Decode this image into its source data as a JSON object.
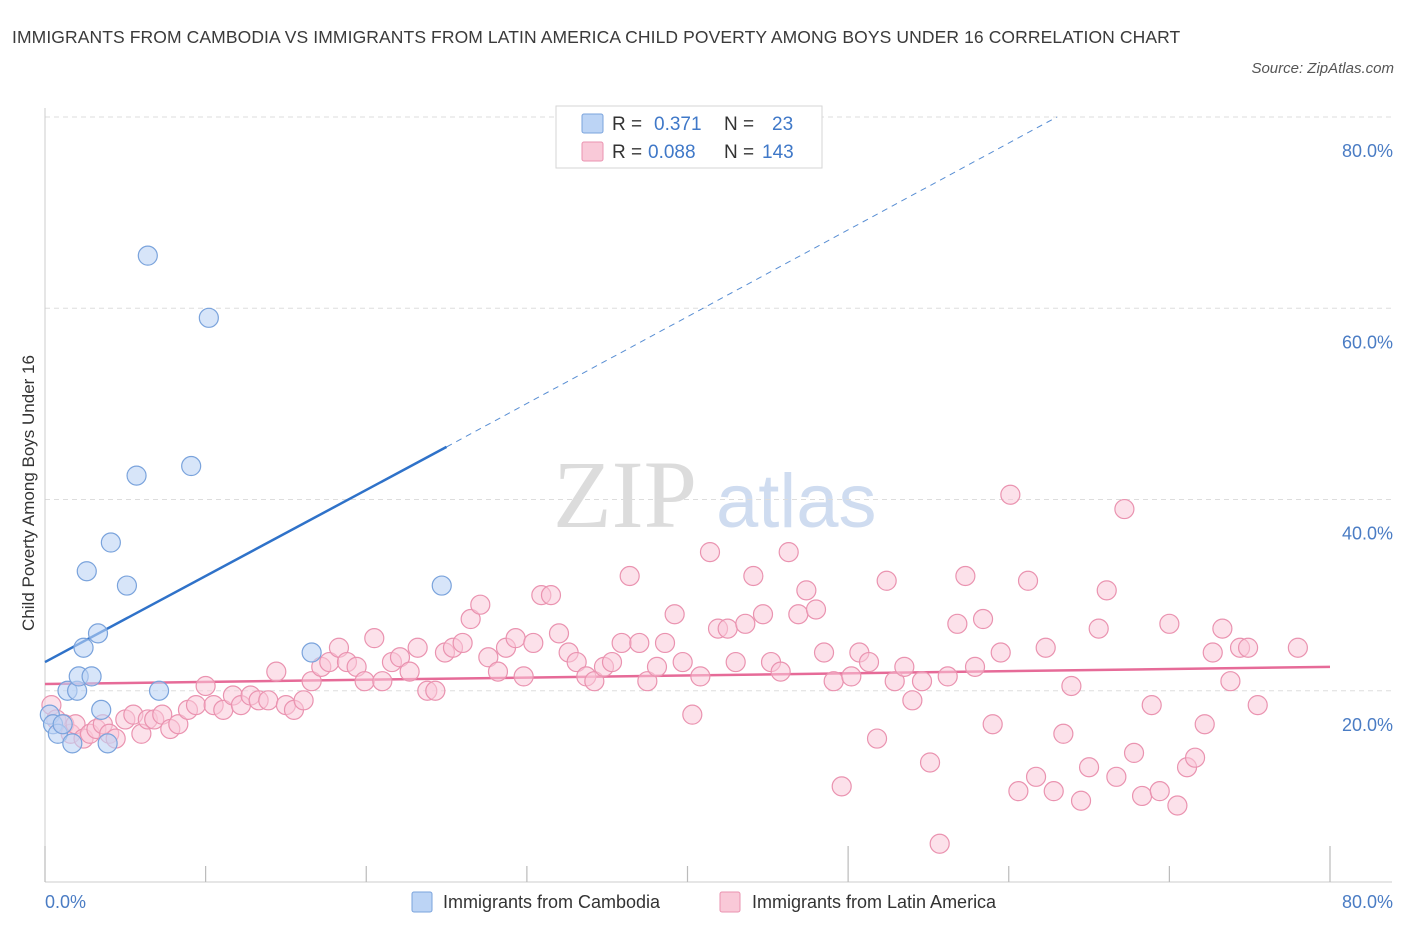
{
  "title": "IMMIGRANTS FROM CAMBODIA VS IMMIGRANTS FROM LATIN AMERICA CHILD POVERTY AMONG BOYS UNDER 16 CORRELATION CHART",
  "source": "Source: ZipAtlas.com",
  "watermark": {
    "part1": "ZIP",
    "part2": "atlas"
  },
  "legend": {
    "rows": [
      {
        "r_label": "R =",
        "r_value": "0.371",
        "n_label": "N =",
        "n_value": "23"
      },
      {
        "r_label": "R =",
        "r_value": "0.088",
        "n_label": "N =",
        "n_value": "143"
      }
    ]
  },
  "bottom_legend": [
    "Immigrants from Cambodia",
    "Immigrants from Latin America"
  ],
  "colors": {
    "cambodia_fill": "#bcd4f5",
    "cambodia_stroke": "#7aa3dc",
    "cambodia_line": "#2f72c9",
    "latin_fill": "#f9c9d8",
    "latin_stroke": "#ea93b0",
    "latin_line": "#e66b98",
    "tick_text": "#4a7cc4",
    "grid": "#dddddd"
  },
  "chart_data": {
    "type": "scatter",
    "title": "IMMIGRANTS FROM CAMBODIA VS IMMIGRANTS FROM LATIN AMERICA CHILD POVERTY AMONG BOYS UNDER 16 CORRELATION CHART",
    "xlabel": "",
    "ylabel": "Child Poverty Among Boys Under 16",
    "xlim": [
      0,
      80
    ],
    "ylim": [
      0,
      80
    ],
    "x_tick_labels": [
      "0.0%",
      "80.0%"
    ],
    "y_tick_labels": [
      "20.0%",
      "40.0%",
      "60.0%",
      "80.0%"
    ],
    "y_ticks": [
      20,
      40,
      60,
      80
    ],
    "grid": true,
    "legend_position": "top-center",
    "series": [
      {
        "name": "Immigrants from Cambodia",
        "R": 0.371,
        "N": 23,
        "trend": {
          "x": [
            0,
            25
          ],
          "y": [
            23,
            45.5
          ],
          "dashed_extension": {
            "x": [
              25,
              63
            ],
            "y": [
              45.5,
              80
            ]
          }
        },
        "points": [
          [
            0.3,
            17.5
          ],
          [
            0.5,
            16.5
          ],
          [
            0.8,
            15.5
          ],
          [
            1.1,
            16.5
          ],
          [
            1.4,
            20.0
          ],
          [
            1.7,
            14.5
          ],
          [
            2.0,
            20.0
          ],
          [
            2.1,
            21.5
          ],
          [
            2.4,
            24.5
          ],
          [
            2.6,
            32.5
          ],
          [
            2.9,
            21.5
          ],
          [
            3.3,
            26.0
          ],
          [
            3.5,
            18.0
          ],
          [
            3.9,
            14.5
          ],
          [
            4.1,
            35.5
          ],
          [
            5.1,
            31.0
          ],
          [
            5.7,
            42.5
          ],
          [
            6.4,
            65.5
          ],
          [
            7.1,
            20.0
          ],
          [
            9.1,
            43.5
          ],
          [
            10.2,
            59.0
          ],
          [
            16.6,
            24.0
          ],
          [
            24.7,
            31.0
          ]
        ]
      },
      {
        "name": "Immigrants from Latin America",
        "R": 0.088,
        "N": 143,
        "trend": {
          "x": [
            0,
            80
          ],
          "y": [
            20.7,
            22.5
          ]
        },
        "points": [
          [
            0.4,
            18.5
          ],
          [
            0.7,
            17.0
          ],
          [
            1.2,
            16.5
          ],
          [
            1.6,
            15.5
          ],
          [
            1.9,
            16.5
          ],
          [
            2.4,
            15.0
          ],
          [
            2.8,
            15.5
          ],
          [
            3.2,
            16.0
          ],
          [
            3.6,
            16.5
          ],
          [
            4.0,
            15.5
          ],
          [
            4.4,
            15.0
          ],
          [
            5.0,
            17.0
          ],
          [
            5.5,
            17.5
          ],
          [
            6.0,
            15.5
          ],
          [
            6.4,
            17.0
          ],
          [
            6.8,
            17.0
          ],
          [
            7.3,
            17.5
          ],
          [
            7.8,
            16.0
          ],
          [
            8.3,
            16.5
          ],
          [
            8.9,
            18.0
          ],
          [
            9.4,
            18.5
          ],
          [
            10.0,
            20.5
          ],
          [
            10.5,
            18.5
          ],
          [
            11.1,
            18.0
          ],
          [
            11.7,
            19.5
          ],
          [
            12.2,
            18.5
          ],
          [
            12.8,
            19.5
          ],
          [
            13.3,
            19.0
          ],
          [
            13.9,
            19.0
          ],
          [
            14.4,
            22.0
          ],
          [
            15.0,
            18.5
          ],
          [
            15.5,
            18.0
          ],
          [
            16.1,
            19.0
          ],
          [
            16.6,
            21.0
          ],
          [
            17.2,
            22.5
          ],
          [
            17.7,
            23.0
          ],
          [
            18.3,
            24.5
          ],
          [
            18.8,
            23.0
          ],
          [
            19.4,
            22.5
          ],
          [
            19.9,
            21.0
          ],
          [
            20.5,
            25.5
          ],
          [
            21.0,
            21.0
          ],
          [
            21.6,
            23.0
          ],
          [
            22.1,
            23.5
          ],
          [
            22.7,
            22.0
          ],
          [
            23.2,
            24.5
          ],
          [
            23.8,
            20.0
          ],
          [
            24.3,
            20.0
          ],
          [
            24.9,
            24.0
          ],
          [
            25.4,
            24.5
          ],
          [
            26.0,
            25.0
          ],
          [
            26.5,
            27.5
          ],
          [
            27.1,
            29.0
          ],
          [
            27.6,
            23.5
          ],
          [
            28.2,
            22.0
          ],
          [
            28.7,
            24.5
          ],
          [
            29.3,
            25.5
          ],
          [
            29.8,
            21.5
          ],
          [
            30.4,
            25.0
          ],
          [
            30.9,
            30.0
          ],
          [
            31.5,
            30.0
          ],
          [
            32.0,
            26.0
          ],
          [
            32.6,
            24.0
          ],
          [
            33.1,
            23.0
          ],
          [
            33.7,
            21.5
          ],
          [
            34.2,
            21.0
          ],
          [
            34.8,
            22.5
          ],
          [
            35.3,
            23.0
          ],
          [
            35.9,
            25.0
          ],
          [
            36.4,
            32.0
          ],
          [
            37.0,
            25.0
          ],
          [
            37.5,
            21.0
          ],
          [
            38.1,
            22.5
          ],
          [
            38.6,
            25.0
          ],
          [
            39.2,
            28.0
          ],
          [
            39.7,
            23.0
          ],
          [
            40.3,
            17.5
          ],
          [
            40.8,
            21.5
          ],
          [
            41.4,
            34.5
          ],
          [
            41.9,
            26.5
          ],
          [
            42.5,
            26.5
          ],
          [
            43.0,
            23.0
          ],
          [
            43.6,
            27.0
          ],
          [
            44.1,
            32.0
          ],
          [
            44.7,
            28.0
          ],
          [
            45.2,
            23.0
          ],
          [
            45.8,
            22.0
          ],
          [
            46.3,
            34.5
          ],
          [
            46.9,
            28.0
          ],
          [
            47.4,
            30.5
          ],
          [
            48.0,
            28.5
          ],
          [
            48.5,
            24.0
          ],
          [
            49.1,
            21.0
          ],
          [
            49.6,
            10.0
          ],
          [
            50.2,
            21.5
          ],
          [
            50.7,
            24.0
          ],
          [
            51.3,
            23.0
          ],
          [
            51.8,
            15.0
          ],
          [
            52.4,
            31.5
          ],
          [
            52.9,
            21.0
          ],
          [
            53.5,
            22.5
          ],
          [
            54.0,
            19.0
          ],
          [
            54.6,
            21.0
          ],
          [
            55.1,
            12.5
          ],
          [
            55.7,
            4.0
          ],
          [
            56.2,
            21.5
          ],
          [
            56.8,
            27.0
          ],
          [
            57.3,
            32.0
          ],
          [
            57.9,
            22.5
          ],
          [
            58.4,
            27.5
          ],
          [
            59.0,
            16.5
          ],
          [
            59.5,
            24.0
          ],
          [
            60.1,
            40.5
          ],
          [
            60.6,
            9.5
          ],
          [
            61.2,
            31.5
          ],
          [
            61.7,
            11.0
          ],
          [
            62.3,
            24.5
          ],
          [
            62.8,
            9.5
          ],
          [
            63.4,
            15.5
          ],
          [
            63.9,
            20.5
          ],
          [
            64.5,
            8.5
          ],
          [
            65.0,
            12.0
          ],
          [
            65.6,
            26.5
          ],
          [
            66.1,
            30.5
          ],
          [
            66.7,
            11.0
          ],
          [
            67.2,
            39.0
          ],
          [
            67.8,
            13.5
          ],
          [
            68.3,
            9.0
          ],
          [
            68.9,
            18.5
          ],
          [
            69.4,
            9.5
          ],
          [
            70.0,
            27.0
          ],
          [
            70.5,
            8.0
          ],
          [
            71.1,
            12.0
          ],
          [
            71.6,
            13.0
          ],
          [
            72.2,
            16.5
          ],
          [
            72.7,
            24.0
          ],
          [
            73.3,
            26.5
          ],
          [
            73.8,
            21.0
          ],
          [
            74.4,
            24.5
          ],
          [
            74.9,
            24.5
          ],
          [
            75.5,
            18.5
          ],
          [
            78.0,
            24.5
          ]
        ]
      }
    ]
  }
}
